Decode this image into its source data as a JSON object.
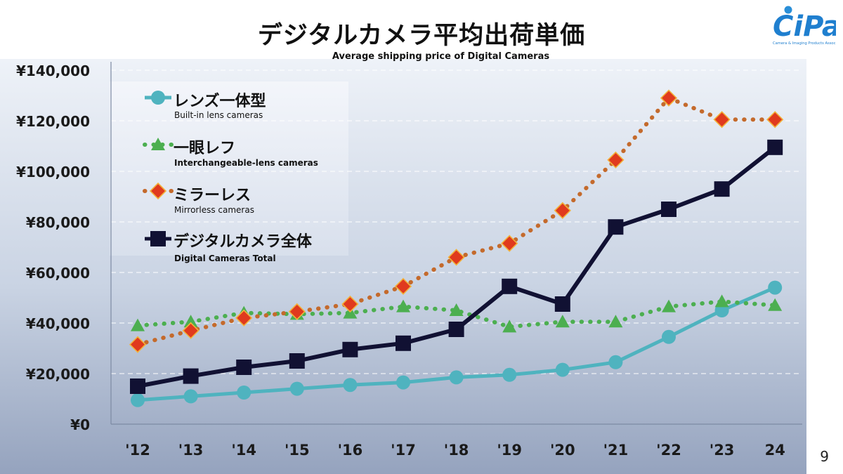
{
  "slide": {
    "title": "デジタルカメラ平均出荷単価",
    "subtitle": "Average shipping price of Digital Cameras",
    "page_number": "9",
    "logo": {
      "text": "CIPA",
      "tagline": "Camera & Imaging Products Association"
    }
  },
  "legend": [
    {
      "title": "レンズ一体型",
      "subtitle": "Built-in lens cameras",
      "marker": "circle",
      "line": "solid",
      "color": "#4fb3bf"
    },
    {
      "title": "一眼レフ",
      "subtitle": "Interchangeable-lens cameras",
      "marker": "triangle",
      "line": "dotted",
      "color": "#4caf50"
    },
    {
      "title": "ミラーレス",
      "subtitle": "Mirrorless cameras",
      "marker": "diamond",
      "line": "dotted",
      "color": "#e03a1e"
    },
    {
      "title": "デジタルカメラ全体",
      "subtitle": "Digital Cameras Total",
      "marker": "square",
      "line": "solid",
      "color": "#111133"
    }
  ],
  "chart_data": {
    "type": "line",
    "title": "デジタルカメラ平均出荷単価",
    "subtitle": "Average shipping price of Digital Cameras",
    "x": [
      "'12",
      "'13",
      "'14",
      "'15",
      "'16",
      "'17",
      "'18",
      "'19",
      "'20",
      "'21",
      "'22",
      "'23",
      "24"
    ],
    "yticks": [
      "¥0",
      "¥20,000",
      "¥40,000",
      "¥60,000",
      "¥80,000",
      "¥100,000",
      "¥120,000",
      "¥140,000"
    ],
    "ylim": [
      0,
      140000
    ],
    "grid": true,
    "legend_position": "top-left",
    "series": [
      {
        "name": "レンズ一体型 Built-in lens cameras",
        "marker": "circle",
        "line": "solid",
        "color": "#4fb3bf",
        "values": [
          9500,
          11000,
          12500,
          14000,
          15500,
          16500,
          18500,
          19500,
          21500,
          24500,
          34500,
          45000,
          54000
        ]
      },
      {
        "name": "一眼レフ Interchangeable-lens cameras",
        "marker": "triangle",
        "line": "dotted",
        "color": "#4caf50",
        "values": [
          39000,
          40500,
          44000,
          43500,
          44000,
          46500,
          45000,
          38500,
          40500,
          40500,
          46500,
          48500,
          47000
        ]
      },
      {
        "name": "ミラーレス Mirrorless cameras",
        "marker": "diamond",
        "line": "dotted",
        "color": "#e03a1e",
        "values": [
          31500,
          37000,
          42000,
          44500,
          47500,
          54500,
          66000,
          71500,
          84500,
          104500,
          129000,
          120500,
          120500
        ]
      },
      {
        "name": "デジタルカメラ全体 Digital Cameras Total",
        "marker": "square",
        "line": "solid",
        "color": "#111133",
        "values": [
          15000,
          19000,
          22500,
          25000,
          29500,
          32000,
          37500,
          54500,
          47500,
          78000,
          85000,
          93000,
          109500
        ]
      }
    ]
  }
}
